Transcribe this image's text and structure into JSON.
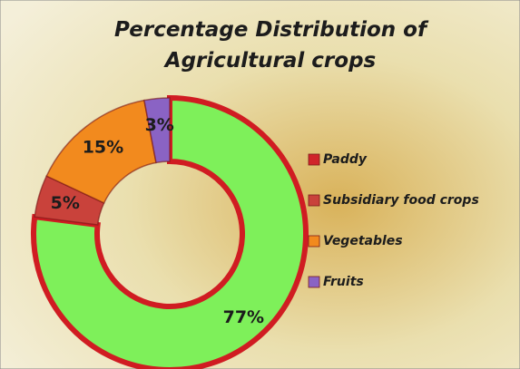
{
  "chart_data": {
    "type": "donut",
    "title": "Percentage Distribution of Agricultural crops",
    "categories": [
      "Paddy",
      "Subsidiary food crops",
      "Vegetables",
      "Fruits"
    ],
    "values": [
      77,
      5,
      15,
      3
    ],
    "value_labels": [
      "77%",
      "5%",
      "15%",
      "3%"
    ],
    "colors": [
      "#7ef05a",
      "#c9423b",
      "#f28a1e",
      "#8a63c4"
    ],
    "legend_colors": [
      "#d0242a",
      "#c9423b",
      "#f28a1e",
      "#8a63c4"
    ],
    "border_color": "#d01c22",
    "legend": "right"
  }
}
